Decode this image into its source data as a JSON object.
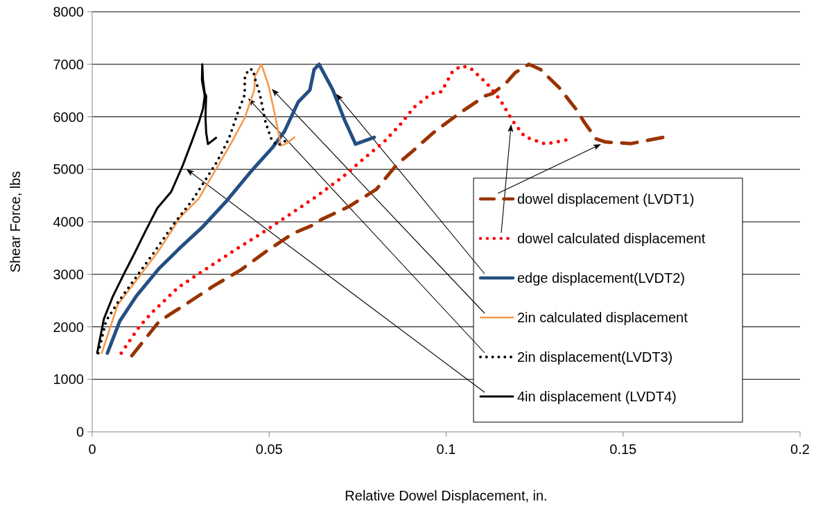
{
  "chart_data": {
    "type": "line",
    "xlabel": "Relative Dowel Displacement, in.",
    "ylabel": "Shear Force, lbs",
    "xlim": [
      0,
      0.2
    ],
    "xticks": [
      0,
      0.05,
      0.1,
      0.15,
      0.2
    ],
    "ylim": [
      0,
      8000
    ],
    "yticks": [
      0,
      1000,
      2000,
      3000,
      4000,
      5000,
      6000,
      7000,
      8000
    ],
    "grid": "y",
    "legend": "bottom right",
    "series": [
      {
        "name": "dowel displacement (LVDT1)",
        "color": "#993300",
        "line_style": "dashed",
        "x": [
          0.0112,
          0.019,
          0.0262,
          0.0341,
          0.0419,
          0.049,
          0.0568,
          0.0635,
          0.0646,
          0.0725,
          0.0803,
          0.0862,
          0.0901,
          0.0968,
          0.1038,
          0.1111,
          0.113,
          0.1169,
          0.1195,
          0.1234,
          0.1267,
          0.132,
          0.1371,
          0.1391,
          0.1424,
          0.145,
          0.1522,
          0.1614
        ],
        "values": [
          1450,
          2110,
          2420,
          2770,
          3080,
          3430,
          3780,
          3970,
          4040,
          4290,
          4620,
          5100,
          5320,
          5720,
          6070,
          6400,
          6440,
          6640,
          6840,
          7000,
          6900,
          6550,
          6110,
          5890,
          5580,
          5520,
          5490,
          5610
        ]
      },
      {
        "name": "dowel calculated displacement",
        "color": "#ff0000",
        "line_style": "dotted",
        "x": [
          0.0082,
          0.0135,
          0.0176,
          0.0243,
          0.0321,
          0.04,
          0.0478,
          0.0556,
          0.0635,
          0.0709,
          0.0758,
          0.0827,
          0.087,
          0.0909,
          0.0958,
          0.0987,
          0.1017,
          0.1042,
          0.1068,
          0.1115,
          0.1154,
          0.1185,
          0.1222,
          0.1281,
          0.134
        ],
        "values": [
          1500,
          2020,
          2320,
          2750,
          3100,
          3450,
          3780,
          4130,
          4490,
          4860,
          5150,
          5540,
          5850,
          6180,
          6440,
          6480,
          6850,
          6970,
          6930,
          6640,
          6310,
          5950,
          5620,
          5480,
          5560
        ]
      },
      {
        "name": "edge displacement(LVDT2)",
        "color": "#244f82",
        "line_style": "solid",
        "x": [
          0.0043,
          0.0078,
          0.0125,
          0.019,
          0.0249,
          0.0313,
          0.038,
          0.045,
          0.0509,
          0.0543,
          0.0582,
          0.0615,
          0.0627,
          0.0641,
          0.068,
          0.0713,
          0.0744,
          0.0797
        ],
        "values": [
          1500,
          2110,
          2590,
          3120,
          3510,
          3910,
          4400,
          4970,
          5410,
          5720,
          6280,
          6510,
          6900,
          7000,
          6510,
          5940,
          5480,
          5610
        ]
      },
      {
        "name": "2in calculated displacement",
        "color": "#f79646",
        "line_style": "solid",
        "x": [
          0.0027,
          0.0072,
          0.0131,
          0.019,
          0.0249,
          0.0301,
          0.0347,
          0.0392,
          0.0431,
          0.0458,
          0.046,
          0.0478,
          0.0498,
          0.0517,
          0.0533,
          0.0548,
          0.0572
        ],
        "values": [
          1500,
          2420,
          2940,
          3470,
          4090,
          4440,
          4970,
          5490,
          5980,
          6510,
          6770,
          7000,
          6600,
          6020,
          5450,
          5490,
          5610
        ]
      },
      {
        "name": "2in displacement(LVDT3)",
        "color": "#000000",
        "line_style": "dotted",
        "x": [
          0.0017,
          0.0039,
          0.0072,
          0.0131,
          0.0176,
          0.0235,
          0.0282,
          0.0323,
          0.0353,
          0.0386,
          0.0412,
          0.0431,
          0.0431,
          0.0441,
          0.0454,
          0.046,
          0.0474,
          0.049,
          0.0507,
          0.0523,
          0.0546
        ],
        "values": [
          1500,
          2110,
          2460,
          3010,
          3430,
          4000,
          4400,
          4830,
          5150,
          5580,
          6090,
          6420,
          6730,
          6900,
          6900,
          6730,
          6420,
          5890,
          5560,
          5450,
          5540
        ]
      },
      {
        "name": "4in displacement (LVDT4)",
        "color": "#000000",
        "line_style": "solid",
        "x": [
          0.0014,
          0.0033,
          0.0059,
          0.0092,
          0.0118,
          0.0151,
          0.0184,
          0.0223,
          0.0255,
          0.0282,
          0.0301,
          0.0313,
          0.0318,
          0.031,
          0.0311,
          0.0313,
          0.0318,
          0.0322,
          0.032,
          0.0322,
          0.0327,
          0.035
        ],
        "values": [
          1500,
          2150,
          2590,
          3040,
          3380,
          3830,
          4260,
          4570,
          5060,
          5540,
          5890,
          6150,
          6400,
          6700,
          7000,
          6700,
          6450,
          6400,
          6000,
          5700,
          5480,
          5600
        ]
      }
    ]
  }
}
